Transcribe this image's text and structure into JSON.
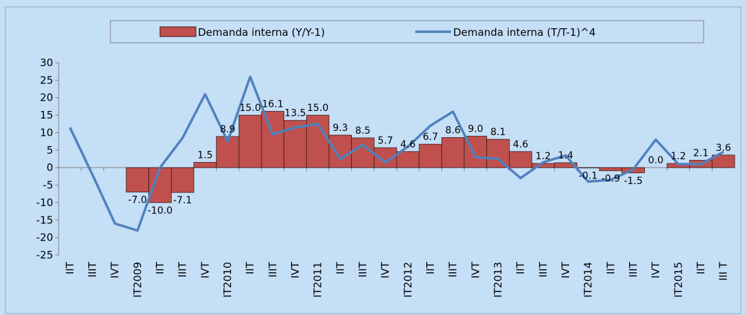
{
  "chart_data": {
    "type": "bar_line",
    "categories": [
      "IIT",
      "IIIT",
      "IVT",
      "IT2009",
      "IIT",
      "IIIT",
      "IVT",
      "IT2010",
      "IIT",
      "IIIT",
      "IVT",
      "IT2011",
      "IIT",
      "IIIT",
      "IVT",
      "IT2012",
      "IIT",
      "IIIT",
      "IVT",
      "IT2013",
      "IIT",
      "IIIT",
      "IVT",
      "IT2014",
      "IIT",
      "IIIT",
      "IVT",
      "IT2015",
      "IIT",
      "III T"
    ],
    "series": [
      {
        "name": "Demanda interna (Y/Y-1)",
        "type": "bar",
        "color": "#c0504d",
        "values": [
          null,
          null,
          null,
          -7.0,
          -10.0,
          -7.1,
          1.5,
          8.9,
          15.0,
          16.1,
          13.5,
          15.0,
          9.3,
          8.5,
          5.7,
          4.6,
          6.7,
          8.6,
          9.0,
          8.1,
          4.6,
          1.2,
          1.4,
          -0.1,
          -0.9,
          -1.5,
          0.0,
          1.2,
          2.1,
          3.6
        ],
        "value_labels": [
          null,
          null,
          null,
          "-7.0",
          "-10.0",
          "-7.1",
          "1.5",
          "8.9",
          "15.0",
          "16.1",
          "13.5",
          "15.0",
          "9.3",
          "8.5",
          "5.7",
          "4.6",
          "6.7",
          "8.6",
          "9.0",
          "8.1",
          "4.6",
          "1.2",
          "1.4",
          "-0.1",
          "-0.9",
          "-1.5",
          "0.0",
          "1.2",
          "2.1",
          "3.6"
        ]
      },
      {
        "name": "Demanda interna (T/T-1)^4",
        "type": "line",
        "color": "#4f81bd",
        "values": [
          11.5,
          -2,
          -16,
          -18,
          0,
          8.5,
          21,
          7.5,
          26,
          9.5,
          11.5,
          12.5,
          2.5,
          6.5,
          1.5,
          6,
          12,
          16,
          3,
          2.5,
          -3,
          1.5,
          3.5,
          -4,
          -3.5,
          -0.5,
          8,
          1,
          1,
          4.5
        ]
      }
    ],
    "ylim": [
      -25,
      30
    ],
    "yticks": [
      -25,
      -20,
      -15,
      -10,
      -5,
      0,
      5,
      10,
      15,
      20,
      25,
      30
    ],
    "legend": "top"
  }
}
